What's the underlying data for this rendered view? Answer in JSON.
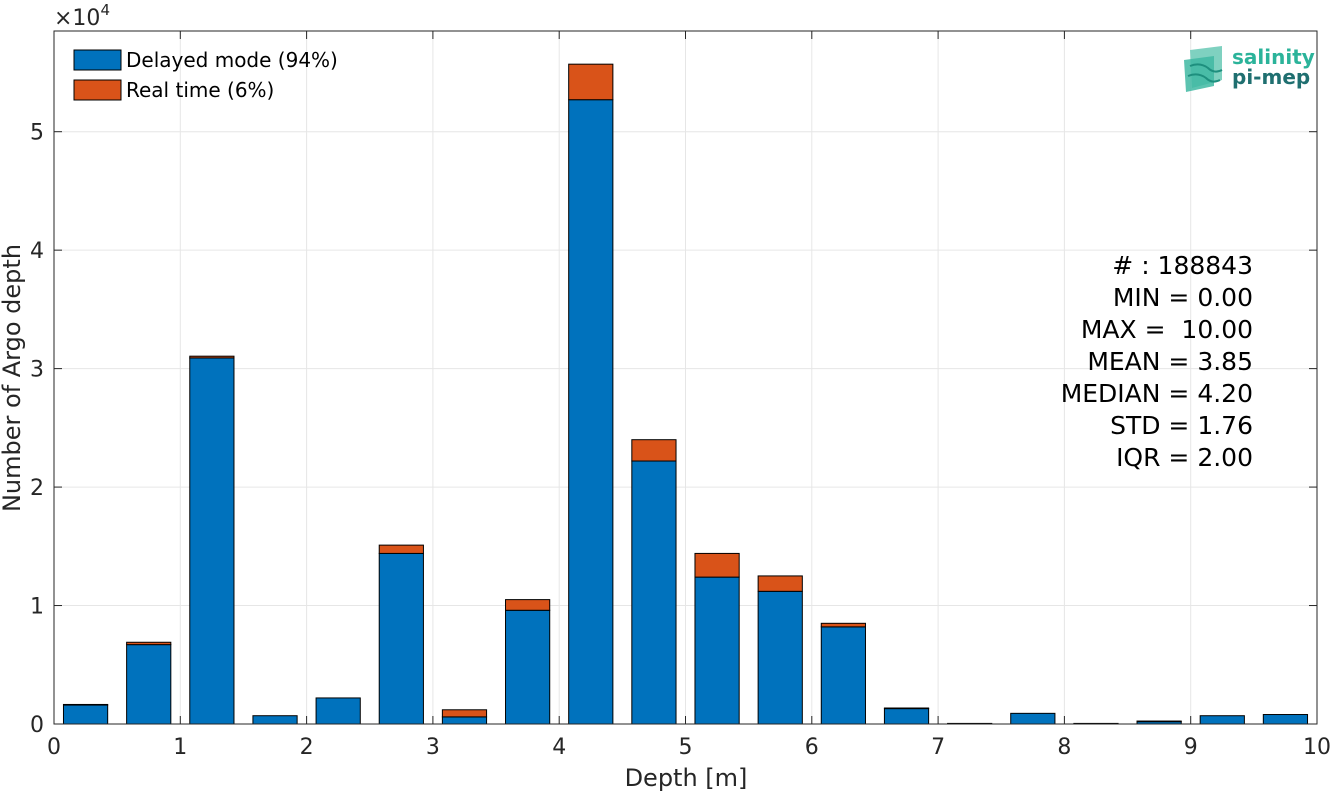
{
  "chart_data": {
    "type": "bar",
    "stacked": true,
    "xlabel": "Depth [m]",
    "ylabel": "Number of Argo depth",
    "y_exponent_label": "×10",
    "y_exponent_power": "4",
    "xlim": [
      0,
      10
    ],
    "ylim": [
      0,
      58500
    ],
    "x_ticks": [
      0,
      1,
      2,
      3,
      4,
      5,
      6,
      7,
      8,
      9,
      10
    ],
    "x_tick_labels": [
      "0",
      "1",
      "2",
      "3",
      "4",
      "5",
      "6",
      "7",
      "8",
      "9",
      "10"
    ],
    "y_ticks": [
      0,
      10000,
      20000,
      30000,
      40000,
      50000
    ],
    "y_tick_labels": [
      "0",
      "1",
      "2",
      "3",
      "4",
      "5"
    ],
    "grid": true,
    "legend_position": "top-left",
    "bin_width": 0.35,
    "x": [
      0.25,
      0.75,
      1.25,
      1.75,
      2.25,
      2.75,
      3.25,
      3.75,
      4.25,
      4.75,
      5.25,
      5.75,
      6.25,
      6.75,
      7.25,
      7.75,
      8.25,
      8.75,
      9.25,
      9.75
    ],
    "series": [
      {
        "name": "Delayed mode (94%)",
        "color": "#0072BD",
        "values": [
          1600,
          6700,
          30900,
          700,
          2200,
          14400,
          600,
          9600,
          52700,
          22200,
          12400,
          11200,
          8200,
          1300,
          50,
          900,
          50,
          200,
          700,
          800
        ]
      },
      {
        "name": "Real time (6%)",
        "color": "#D95319",
        "values": [
          50,
          200,
          150,
          0,
          0,
          700,
          600,
          900,
          3000,
          1800,
          2000,
          1300,
          300,
          50,
          0,
          0,
          0,
          50,
          0,
          0
        ]
      }
    ],
    "stats": [
      "# : 188843",
      "MIN = 0.00",
      "MAX =  10.00",
      "MEAN = 3.85",
      "MEDIAN = 4.20",
      "STD = 1.76",
      "IQR = 2.00"
    ]
  },
  "logo": {
    "line1": "salinity",
    "line2": "pi-mep"
  }
}
